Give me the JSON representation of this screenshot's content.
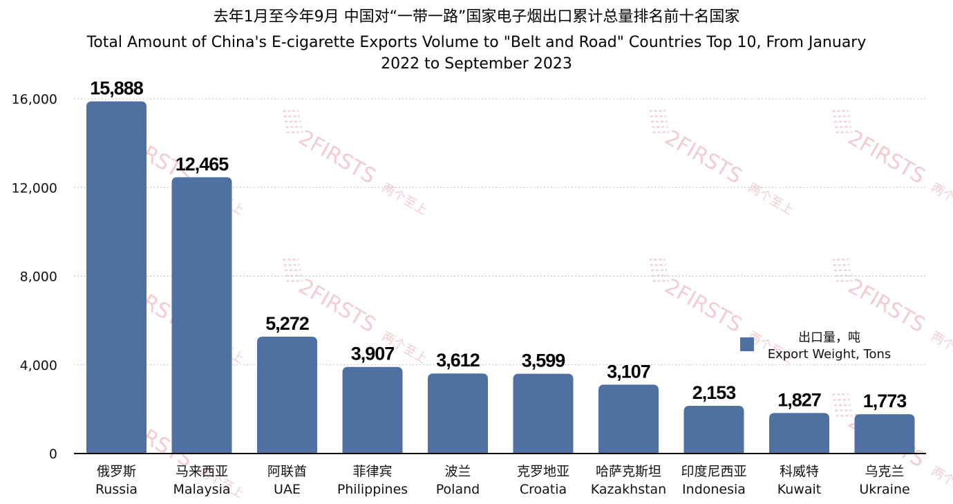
{
  "title": {
    "zh": "去年1月至今年9月 中国对“一带一路”国家电子烟出口累计总量排名前十名国家",
    "en_line1": "Total Amount of China's E-cigarette Exports Volume to \"Belt and Road\" Countries Top 10, From January",
    "en_line2": "2022 to September 2023"
  },
  "legend": {
    "zh": "出口量，吨",
    "en": "Export Weight, Tons",
    "color": "#4f71a1"
  },
  "watermark": {
    "text": "2FIRSTS",
    "zh": "两个至上",
    "color": "#e8a4ab"
  },
  "colors": {
    "bar": "#4f71a1",
    "grid": "#bfbfbf",
    "axis": "#000000"
  },
  "chart_data": {
    "type": "bar",
    "title": "Total Amount of China's E-cigarette Exports Volume to \"Belt and Road\" Countries Top 10, From January 2022 to September 2023",
    "title_zh": "去年1月至今年9月 中国对“一带一路”国家电子烟出口累计总量排名前十名国家",
    "categories": [
      "Russia",
      "Malaysia",
      "UAE",
      "Philippines",
      "Poland",
      "Croatia",
      "Kazakhstan",
      "Indonesia",
      "Kuwait",
      "Ukraine"
    ],
    "categories_zh": [
      "俄罗斯",
      "马来西亚",
      "阿联酋",
      "菲律宾",
      "波兰",
      "克罗地亚",
      "哈萨克斯坦",
      "印度尼西亚",
      "科威特",
      "乌克兰"
    ],
    "series": [
      {
        "name": "Export Weight, Tons",
        "name_zh": "出口量，吨",
        "values": [
          15888,
          12465,
          5272,
          3907,
          3612,
          3599,
          3107,
          2153,
          1827,
          1773
        ]
      }
    ],
    "value_labels": [
      "15,888",
      "12,465",
      "5,272",
      "3,907",
      "3,612",
      "3,599",
      "3,107",
      "2,153",
      "1,827",
      "1,773"
    ],
    "xlabel": "",
    "ylabel": "",
    "ylim": [
      0,
      16000
    ],
    "yticks": [
      0,
      4000,
      8000,
      12000,
      16000
    ],
    "ytick_labels": [
      "0",
      "4,000",
      "8,000",
      "12,000",
      "16,000"
    ],
    "grid": true,
    "legend_position": "right-middle"
  }
}
